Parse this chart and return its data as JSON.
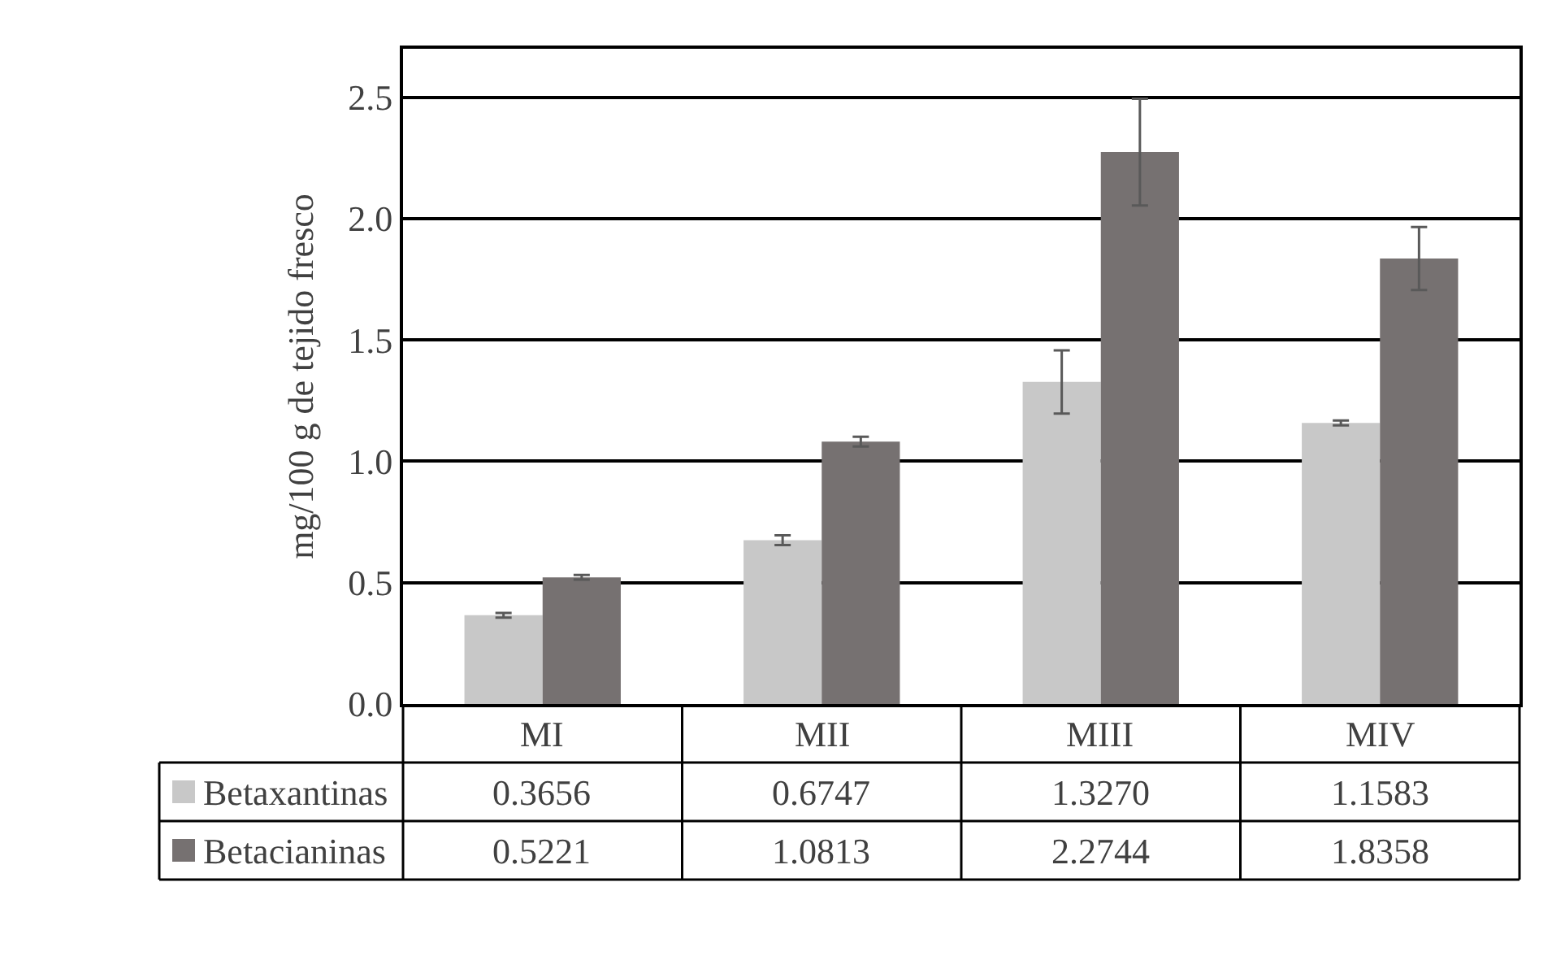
{
  "chart_data": {
    "type": "bar",
    "ylabel": "mg/100 g de tejido fresco",
    "categories": [
      "MI",
      "MII",
      "MIII",
      "MIV"
    ],
    "series": [
      {
        "name": "Betaxantinas",
        "color": "#c8c8c8",
        "values": [
          0.3656,
          0.6747,
          1.327,
          1.1583
        ],
        "errors": [
          0.01,
          0.02,
          0.13,
          0.01
        ],
        "value_labels": [
          "0.3656",
          "0.6747",
          "1.3270",
          "1.1583"
        ]
      },
      {
        "name": "Betacianinas",
        "color": "#767171",
        "values": [
          0.5221,
          1.0813,
          2.2744,
          1.8358
        ],
        "errors": [
          0.01,
          0.02,
          0.22,
          0.13
        ],
        "value_labels": [
          "0.5221",
          "1.0813",
          "2.2744",
          "1.8358"
        ]
      }
    ],
    "ylim": [
      0,
      2.7
    ],
    "yticks": [
      {
        "value": 0,
        "label": "0.0"
      },
      {
        "value": 0.5,
        "label": "0.5"
      },
      {
        "value": 1,
        "label": "1.0"
      },
      {
        "value": 1.5,
        "label": "1.5"
      },
      {
        "value": 2,
        "label": "2.0"
      },
      {
        "value": 2.5,
        "label": "2.5"
      }
    ],
    "grid": "y",
    "legend": "bottom left"
  }
}
